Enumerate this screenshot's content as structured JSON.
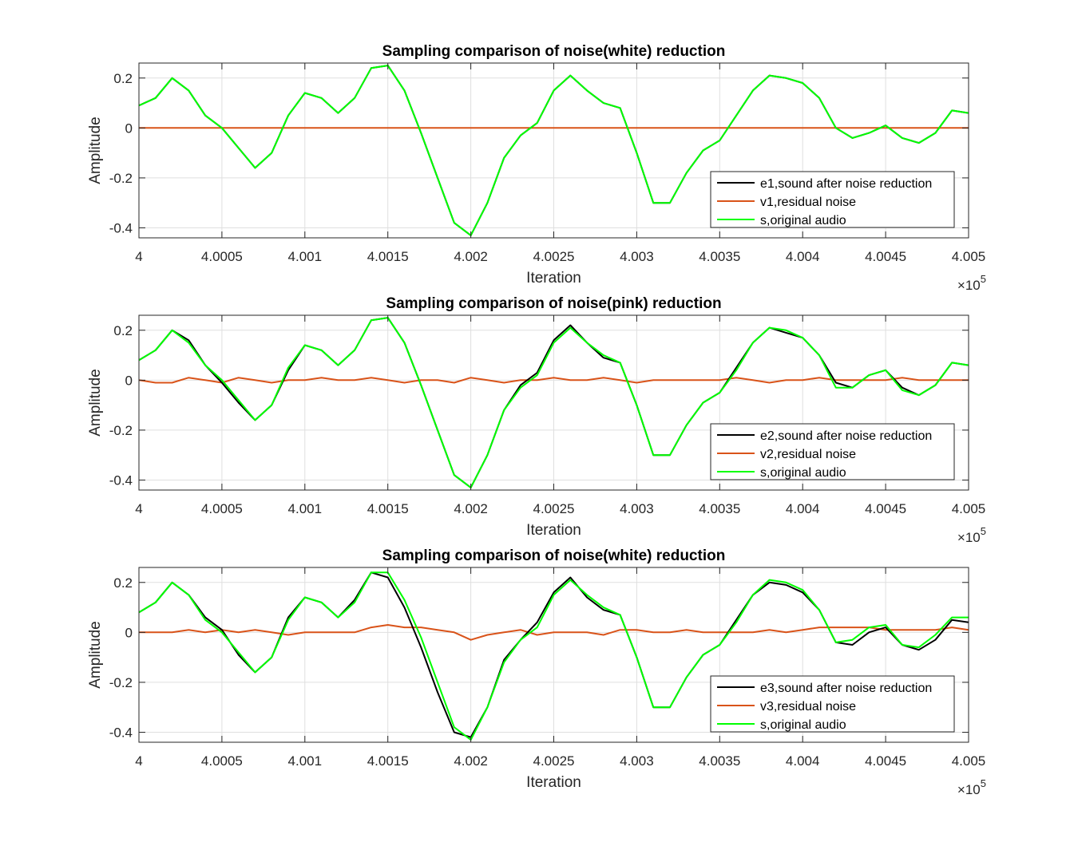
{
  "chart_data": [
    {
      "type": "line",
      "title": "Sampling comparison of noise(white) reduction",
      "xlabel": "Iteration",
      "ylabel": "Amplitude",
      "xlim": [
        4.0,
        4.005
      ],
      "ylim": [
        -0.44,
        0.26
      ],
      "x_exponent_label": "×10",
      "x_exponent": "5",
      "xticks": [
        "4",
        "4.0005",
        "4.001",
        "4.0015",
        "4.002",
        "4.0025",
        "4.003",
        "4.0035",
        "4.004",
        "4.0045",
        "4.005"
      ],
      "yticks": [
        "0.2",
        "0",
        "-0.2",
        "-0.4"
      ],
      "grid": true,
      "legend_position": "bottom-right",
      "x": [
        4.0,
        4.0001,
        4.0002,
        4.0003,
        4.0004,
        4.0005,
        4.0006,
        4.0007,
        4.0008,
        4.0009,
        4.001,
        4.0011,
        4.0012,
        4.0013,
        4.0014,
        4.0015,
        4.0016,
        4.0017,
        4.0018,
        4.0019,
        4.002,
        4.0021,
        4.0022,
        4.0023,
        4.0024,
        4.0025,
        4.0026,
        4.0027,
        4.0028,
        4.0029,
        4.003,
        4.0031,
        4.0032,
        4.0033,
        4.0034,
        4.0035,
        4.0036,
        4.0037,
        4.0038,
        4.0039,
        4.004,
        4.0041,
        4.0042,
        4.0043,
        4.0044,
        4.0045,
        4.0046,
        4.0047,
        4.0048,
        4.0049,
        4.005
      ],
      "series": [
        {
          "name": "e1,sound after noise reduction",
          "color": "#000000",
          "values": [
            0.09,
            0.12,
            0.2,
            0.15,
            0.05,
            0.0,
            -0.08,
            -0.16,
            -0.1,
            0.05,
            0.14,
            0.12,
            0.06,
            0.12,
            0.24,
            0.25,
            0.15,
            -0.02,
            -0.2,
            -0.38,
            -0.43,
            -0.3,
            -0.12,
            -0.03,
            0.02,
            0.15,
            0.21,
            0.15,
            0.1,
            0.08,
            -0.1,
            -0.3,
            -0.3,
            -0.18,
            -0.09,
            -0.05,
            0.05,
            0.15,
            0.21,
            0.2,
            0.18,
            0.12,
            0.0,
            -0.04,
            -0.02,
            0.01,
            -0.04,
            -0.06,
            -0.02,
            0.07,
            0.06
          ]
        },
        {
          "name": "v1,residual noise",
          "color": "#d95319",
          "values": [
            0.0,
            0.0,
            0.0,
            0.0,
            0.0,
            0.0,
            0.0,
            0.0,
            0.0,
            0.0,
            0.0,
            0.0,
            0.0,
            0.0,
            0.0,
            0.0,
            0.0,
            0.0,
            0.0,
            0.0,
            0.0,
            0.0,
            0.0,
            0.0,
            0.0,
            0.0,
            0.0,
            0.0,
            0.0,
            0.0,
            0.0,
            0.0,
            0.0,
            0.0,
            0.0,
            0.0,
            0.0,
            0.0,
            0.0,
            0.0,
            0.0,
            0.0,
            0.0,
            0.0,
            0.0,
            0.0,
            0.0,
            0.0,
            0.0,
            0.0,
            0.0
          ]
        },
        {
          "name": "s,original audio",
          "color": "#00ff00",
          "values": [
            0.09,
            0.12,
            0.2,
            0.15,
            0.05,
            0.0,
            -0.08,
            -0.16,
            -0.1,
            0.05,
            0.14,
            0.12,
            0.06,
            0.12,
            0.24,
            0.25,
            0.15,
            -0.02,
            -0.2,
            -0.38,
            -0.43,
            -0.3,
            -0.12,
            -0.03,
            0.02,
            0.15,
            0.21,
            0.15,
            0.1,
            0.08,
            -0.1,
            -0.3,
            -0.3,
            -0.18,
            -0.09,
            -0.05,
            0.05,
            0.15,
            0.21,
            0.2,
            0.18,
            0.12,
            0.0,
            -0.04,
            -0.02,
            0.01,
            -0.04,
            -0.06,
            -0.02,
            0.07,
            0.06
          ]
        }
      ]
    },
    {
      "type": "line",
      "title": "Sampling comparison of noise(pink) reduction",
      "xlabel": "Iteration",
      "ylabel": "Amplitude",
      "xlim": [
        4.0,
        4.005
      ],
      "ylim": [
        -0.44,
        0.26
      ],
      "x_exponent_label": "×10",
      "x_exponent": "5",
      "xticks": [
        "4",
        "4.0005",
        "4.001",
        "4.0015",
        "4.002",
        "4.0025",
        "4.003",
        "4.0035",
        "4.004",
        "4.0045",
        "4.005"
      ],
      "yticks": [
        "0.2",
        "0",
        "-0.2",
        "-0.4"
      ],
      "grid": true,
      "legend_position": "bottom-right",
      "x": [
        4.0,
        4.0001,
        4.0002,
        4.0003,
        4.0004,
        4.0005,
        4.0006,
        4.0007,
        4.0008,
        4.0009,
        4.001,
        4.0011,
        4.0012,
        4.0013,
        4.0014,
        4.0015,
        4.0016,
        4.0017,
        4.0018,
        4.0019,
        4.002,
        4.0021,
        4.0022,
        4.0023,
        4.0024,
        4.0025,
        4.0026,
        4.0027,
        4.0028,
        4.0029,
        4.003,
        4.0031,
        4.0032,
        4.0033,
        4.0034,
        4.0035,
        4.0036,
        4.0037,
        4.0038,
        4.0039,
        4.004,
        4.0041,
        4.0042,
        4.0043,
        4.0044,
        4.0045,
        4.0046,
        4.0047,
        4.0048,
        4.0049,
        4.005
      ],
      "series": [
        {
          "name": "e2,sound after noise reduction",
          "color": "#000000",
          "values": [
            0.08,
            0.12,
            0.2,
            0.16,
            0.06,
            -0.01,
            -0.09,
            -0.16,
            -0.1,
            0.04,
            0.14,
            0.12,
            0.06,
            0.12,
            0.24,
            0.25,
            0.15,
            -0.02,
            -0.2,
            -0.38,
            -0.43,
            -0.3,
            -0.12,
            -0.02,
            0.03,
            0.16,
            0.22,
            0.15,
            0.09,
            0.07,
            -0.1,
            -0.3,
            -0.3,
            -0.18,
            -0.09,
            -0.05,
            0.05,
            0.15,
            0.21,
            0.19,
            0.17,
            0.1,
            -0.01,
            -0.03,
            0.02,
            0.04,
            -0.03,
            -0.06,
            -0.02,
            0.07,
            0.06
          ]
        },
        {
          "name": "v2,residual noise",
          "color": "#d95319",
          "values": [
            0.0,
            -0.01,
            -0.01,
            0.01,
            0.0,
            -0.01,
            0.01,
            0.0,
            -0.01,
            0.0,
            0.0,
            0.01,
            0.0,
            0.0,
            0.01,
            0.0,
            -0.01,
            0.0,
            0.0,
            -0.01,
            0.01,
            0.0,
            -0.01,
            0.0,
            0.0,
            0.01,
            0.0,
            0.0,
            0.01,
            0.0,
            -0.01,
            0.0,
            0.0,
            0.0,
            0.0,
            0.0,
            0.01,
            0.0,
            -0.01,
            0.0,
            0.0,
            0.01,
            0.0,
            0.0,
            0.0,
            0.0,
            0.01,
            0.0,
            0.0,
            0.0,
            0.0
          ]
        },
        {
          "name": "s,original audio",
          "color": "#00ff00",
          "values": [
            0.08,
            0.12,
            0.2,
            0.15,
            0.06,
            0.0,
            -0.08,
            -0.16,
            -0.1,
            0.05,
            0.14,
            0.12,
            0.06,
            0.12,
            0.24,
            0.25,
            0.15,
            -0.02,
            -0.2,
            -0.38,
            -0.43,
            -0.3,
            -0.12,
            -0.03,
            0.02,
            0.15,
            0.21,
            0.15,
            0.1,
            0.07,
            -0.1,
            -0.3,
            -0.3,
            -0.18,
            -0.09,
            -0.05,
            0.04,
            0.15,
            0.21,
            0.2,
            0.17,
            0.1,
            -0.03,
            -0.03,
            0.02,
            0.04,
            -0.04,
            -0.06,
            -0.02,
            0.07,
            0.06
          ]
        }
      ]
    },
    {
      "type": "line",
      "title": "Sampling comparison of noise(white) reduction",
      "xlabel": "Iteration",
      "ylabel": "Amplitude",
      "xlim": [
        4.0,
        4.005
      ],
      "ylim": [
        -0.44,
        0.26
      ],
      "x_exponent_label": "×10",
      "x_exponent": "5",
      "xticks": [
        "4",
        "4.0005",
        "4.001",
        "4.0015",
        "4.002",
        "4.0025",
        "4.003",
        "4.0035",
        "4.004",
        "4.0045",
        "4.005"
      ],
      "yticks": [
        "0.2",
        "0",
        "-0.2",
        "-0.4"
      ],
      "grid": true,
      "legend_position": "bottom-right",
      "x": [
        4.0,
        4.0001,
        4.0002,
        4.0003,
        4.0004,
        4.0005,
        4.0006,
        4.0007,
        4.0008,
        4.0009,
        4.001,
        4.0011,
        4.0012,
        4.0013,
        4.0014,
        4.0015,
        4.0016,
        4.0017,
        4.0018,
        4.0019,
        4.002,
        4.0021,
        4.0022,
        4.0023,
        4.0024,
        4.0025,
        4.0026,
        4.0027,
        4.0028,
        4.0029,
        4.003,
        4.0031,
        4.0032,
        4.0033,
        4.0034,
        4.0035,
        4.0036,
        4.0037,
        4.0038,
        4.0039,
        4.004,
        4.0041,
        4.0042,
        4.0043,
        4.0044,
        4.0045,
        4.0046,
        4.0047,
        4.0048,
        4.0049,
        4.005
      ],
      "series": [
        {
          "name": "e3,sound after noise reduction",
          "color": "#000000",
          "values": [
            0.08,
            0.12,
            0.2,
            0.15,
            0.06,
            0.01,
            -0.09,
            -0.16,
            -0.1,
            0.06,
            0.14,
            0.12,
            0.06,
            0.13,
            0.24,
            0.22,
            0.1,
            -0.06,
            -0.24,
            -0.4,
            -0.42,
            -0.3,
            -0.11,
            -0.03,
            0.04,
            0.16,
            0.22,
            0.14,
            0.09,
            0.07,
            -0.1,
            -0.3,
            -0.3,
            -0.18,
            -0.09,
            -0.05,
            0.05,
            0.15,
            0.2,
            0.19,
            0.16,
            0.09,
            -0.04,
            -0.05,
            0.0,
            0.02,
            -0.05,
            -0.07,
            -0.03,
            0.05,
            0.04
          ]
        },
        {
          "name": "v3,residual noise",
          "color": "#d95319",
          "values": [
            0.0,
            0.0,
            0.0,
            0.01,
            0.0,
            0.01,
            0.0,
            0.01,
            0.0,
            -0.01,
            0.0,
            0.0,
            0.0,
            0.0,
            0.02,
            0.03,
            0.02,
            0.02,
            0.01,
            0.0,
            -0.03,
            -0.01,
            0.0,
            0.01,
            -0.01,
            0.0,
            0.0,
            0.0,
            -0.01,
            0.01,
            0.01,
            0.0,
            0.0,
            0.01,
            0.0,
            0.0,
            0.0,
            0.0,
            0.01,
            0.0,
            0.01,
            0.02,
            0.02,
            0.02,
            0.02,
            0.01,
            0.01,
            0.01,
            0.01,
            0.02,
            0.01
          ]
        },
        {
          "name": "s,original audio",
          "color": "#00ff00",
          "values": [
            0.08,
            0.12,
            0.2,
            0.15,
            0.05,
            0.0,
            -0.08,
            -0.16,
            -0.1,
            0.05,
            0.14,
            0.12,
            0.06,
            0.12,
            0.24,
            0.24,
            0.13,
            -0.02,
            -0.2,
            -0.38,
            -0.43,
            -0.3,
            -0.12,
            -0.03,
            0.02,
            0.15,
            0.21,
            0.15,
            0.1,
            0.07,
            -0.1,
            -0.3,
            -0.3,
            -0.18,
            -0.09,
            -0.05,
            0.04,
            0.15,
            0.21,
            0.2,
            0.17,
            0.09,
            -0.04,
            -0.03,
            0.02,
            0.03,
            -0.05,
            -0.06,
            -0.01,
            0.06,
            0.06
          ]
        }
      ]
    }
  ]
}
